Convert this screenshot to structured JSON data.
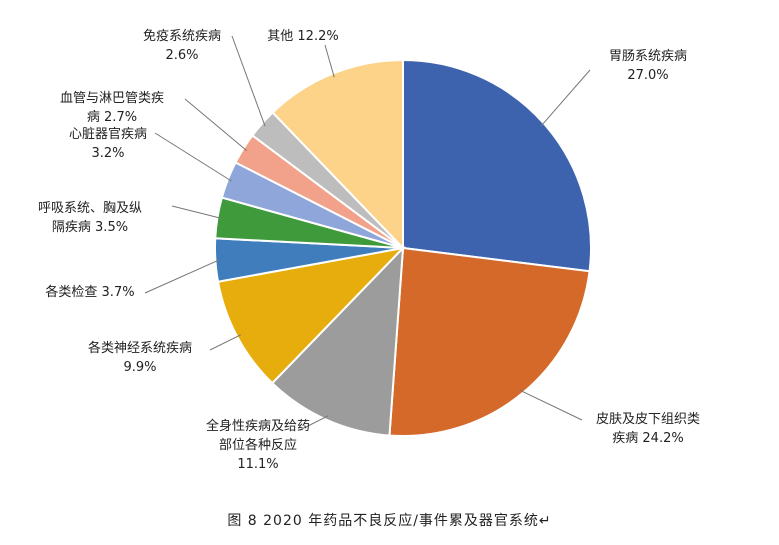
{
  "caption": "图 8   2020 年药品不良反应/事件累及器官系统↵",
  "chart_data": {
    "type": "pie",
    "title": "",
    "slices": [
      {
        "name": "胃肠系统疾病",
        "value": 27.0,
        "label_lines": [
          "胃肠系统疾病",
          "27.0%"
        ],
        "color": "#3E63AE"
      },
      {
        "name": "皮肤及皮下组织类疾病",
        "value": 24.2,
        "label_lines": [
          "皮肤及皮下组织类",
          "疾病 24.2%"
        ],
        "color": "#D4692A"
      },
      {
        "name": "全身性疾病及给药部位各种反应",
        "value": 11.1,
        "label_lines": [
          "全身性疾病及给药",
          "部位各种反应",
          "11.1%"
        ],
        "color": "#9C9C9C"
      },
      {
        "name": "各类神经系统疾病",
        "value": 9.9,
        "label_lines": [
          "各类神经系统疾病",
          "9.9%"
        ],
        "color": "#E6AD0C"
      },
      {
        "name": "各类检查",
        "value": 3.7,
        "label_lines": [
          "各类检查 3.7%"
        ],
        "color": "#3F7DBD"
      },
      {
        "name": "呼吸系统、胸及纵隔疾病",
        "value": 3.5,
        "label_lines": [
          "呼吸系统、胸及纵",
          "隔疾病 3.5%"
        ],
        "color": "#3F9A3C"
      },
      {
        "name": "心脏器官疾病",
        "value": 3.2,
        "label_lines": [
          "心脏器官疾病",
          "3.2%"
        ],
        "color": "#8EA6DA"
      },
      {
        "name": "血管与淋巴管类疾病",
        "value": 2.7,
        "label_lines": [
          "血管与淋巴管类疾",
          "病 2.7%"
        ],
        "color": "#F2A18A"
      },
      {
        "name": "免疫系统疾病",
        "value": 2.6,
        "label_lines": [
          "免疫系统疾病",
          "2.6%"
        ],
        "color": "#BDBDBD"
      },
      {
        "name": "其他",
        "value": 12.2,
        "label_lines": [
          "其他 12.2%"
        ],
        "color": "#FDD389"
      }
    ]
  }
}
